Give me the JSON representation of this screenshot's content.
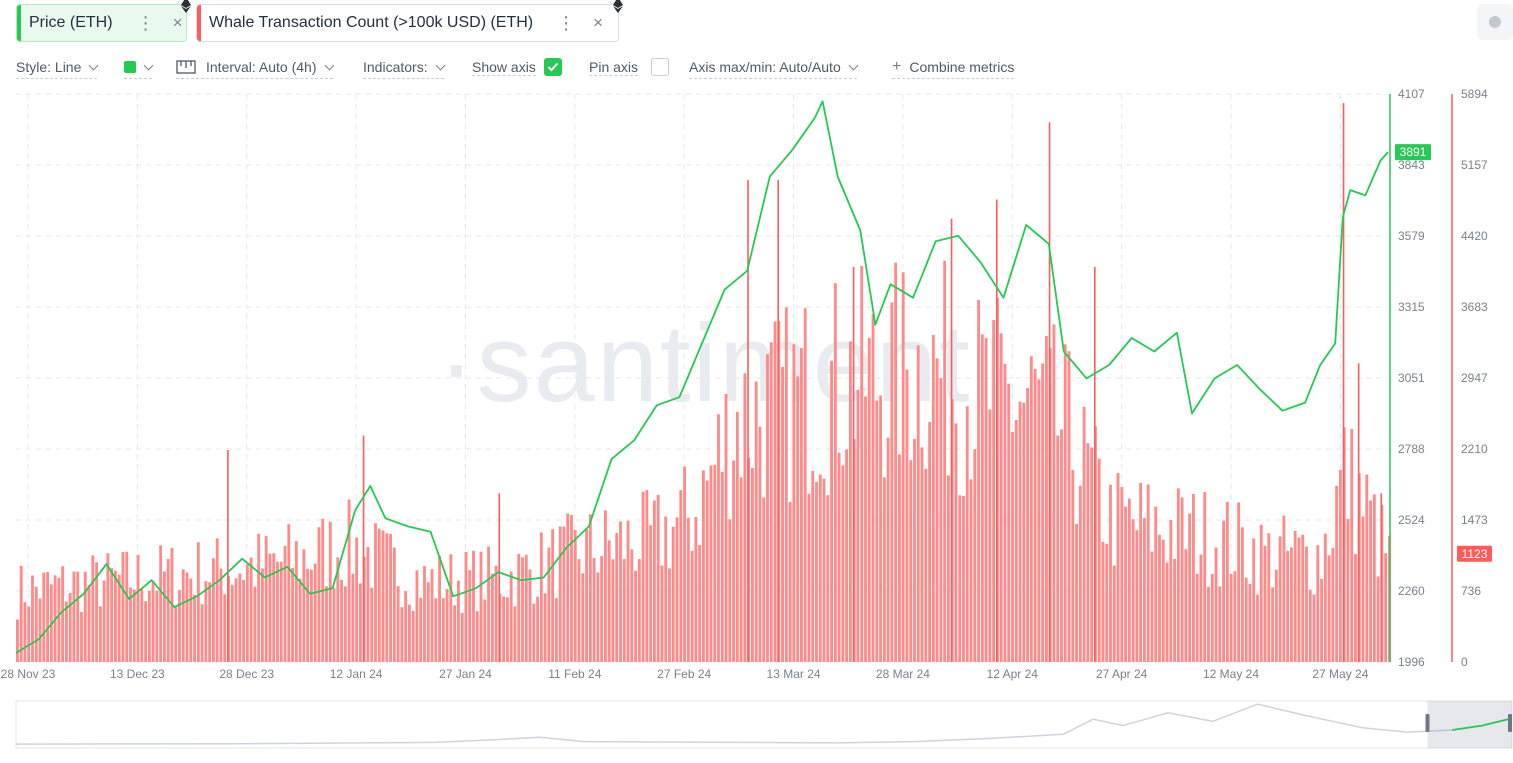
{
  "metrics": [
    {
      "label": "Price (ETH)",
      "color": "#26c953"
    },
    {
      "label": "Whale Transaction Count (>100k USD) (ETH)",
      "color": "#ff5b5b"
    }
  ],
  "menu_glyph": "⋮",
  "close_glyph": "×",
  "settings": {
    "style": "Style: Line",
    "interval": "Interval: Auto (4h)",
    "indicators": "Indicators:",
    "show_axis": "Show axis",
    "show_axis_checked": true,
    "pin_axis": "Pin axis",
    "pin_axis_checked": false,
    "axis_maxmin": "Axis max/min: Auto/Auto",
    "combine": "Combine metrics",
    "combine_icon": "+"
  },
  "watermark": "·santiment",
  "icons": {
    "chip_menu": "dots-vertical-icon",
    "chip_close": "close-icon",
    "network": "ethereum-icon",
    "interval": "interval-ruler-icon",
    "checkbox": "check-icon",
    "round_button": "circle-icon"
  },
  "chart_data": {
    "type": "bar",
    "x_tick_labels": [
      "28 Nov 23",
      "13 Dec 23",
      "28 Dec 23",
      "12 Jan 24",
      "27 Jan 24",
      "11 Feb 24",
      "27 Feb 24",
      "13 Mar 24",
      "28 Mar 24",
      "12 Apr 24",
      "27 Apr 24",
      "12 May 24",
      "27 May 24"
    ],
    "x_range": [
      "2023-11-27",
      "2024-05-27"
    ],
    "price_axis": {
      "ticks": [
        "1996",
        "2260",
        "2524",
        "2788",
        "3051",
        "3315",
        "3579",
        "3843",
        "4107"
      ],
      "ylim": [
        1996,
        4107
      ],
      "color": "#26c953"
    },
    "whale_axis": {
      "ticks": [
        "0",
        "736",
        "1473",
        "2210",
        "2947",
        "3683",
        "4420",
        "5157",
        "5894"
      ],
      "ylim": [
        0,
        5894
      ],
      "color": "#ff5b5b"
    },
    "current_price": "3891",
    "current_whale": "1123",
    "grid": true,
    "series": [
      {
        "name": "Price (ETH)",
        "type": "line",
        "color": "#26c953",
        "points": [
          [
            "2023-11-27",
            2030
          ],
          [
            "2023-11-30",
            2080
          ],
          [
            "2023-12-03",
            2180
          ],
          [
            "2023-12-06",
            2250
          ],
          [
            "2023-12-09",
            2360
          ],
          [
            "2023-12-12",
            2230
          ],
          [
            "2023-12-15",
            2300
          ],
          [
            "2023-12-18",
            2200
          ],
          [
            "2023-12-21",
            2240
          ],
          [
            "2023-12-24",
            2300
          ],
          [
            "2023-12-27",
            2380
          ],
          [
            "2023-12-30",
            2310
          ],
          [
            "2024-01-02",
            2350
          ],
          [
            "2024-01-05",
            2250
          ],
          [
            "2024-01-08",
            2270
          ],
          [
            "2024-01-11",
            2560
          ],
          [
            "2024-01-13",
            2650
          ],
          [
            "2024-01-15",
            2530
          ],
          [
            "2024-01-18",
            2500
          ],
          [
            "2024-01-21",
            2480
          ],
          [
            "2024-01-24",
            2240
          ],
          [
            "2024-01-27",
            2270
          ],
          [
            "2024-01-30",
            2330
          ],
          [
            "2024-02-02",
            2300
          ],
          [
            "2024-02-05",
            2310
          ],
          [
            "2024-02-08",
            2420
          ],
          [
            "2024-02-11",
            2500
          ],
          [
            "2024-02-14",
            2750
          ],
          [
            "2024-02-17",
            2820
          ],
          [
            "2024-02-20",
            2950
          ],
          [
            "2024-02-23",
            2980
          ],
          [
            "2024-02-26",
            3180
          ],
          [
            "2024-02-29",
            3380
          ],
          [
            "2024-03-03",
            3450
          ],
          [
            "2024-03-06",
            3800
          ],
          [
            "2024-03-09",
            3900
          ],
          [
            "2024-03-12",
            4020
          ],
          [
            "2024-03-13",
            4080
          ],
          [
            "2024-03-15",
            3800
          ],
          [
            "2024-03-18",
            3600
          ],
          [
            "2024-03-20",
            3250
          ],
          [
            "2024-03-22",
            3400
          ],
          [
            "2024-03-25",
            3350
          ],
          [
            "2024-03-28",
            3560
          ],
          [
            "2024-03-31",
            3580
          ],
          [
            "2024-04-03",
            3480
          ],
          [
            "2024-04-06",
            3350
          ],
          [
            "2024-04-09",
            3620
          ],
          [
            "2024-04-12",
            3550
          ],
          [
            "2024-04-14",
            3150
          ],
          [
            "2024-04-17",
            3050
          ],
          [
            "2024-04-20",
            3100
          ],
          [
            "2024-04-23",
            3200
          ],
          [
            "2024-04-26",
            3150
          ],
          [
            "2024-04-29",
            3220
          ],
          [
            "2024-05-01",
            2920
          ],
          [
            "2024-05-04",
            3050
          ],
          [
            "2024-05-07",
            3100
          ],
          [
            "2024-05-10",
            3010
          ],
          [
            "2024-05-13",
            2930
          ],
          [
            "2024-05-16",
            2960
          ],
          [
            "2024-05-18",
            3100
          ],
          [
            "2024-05-20",
            3180
          ],
          [
            "2024-05-21",
            3650
          ],
          [
            "2024-05-22",
            3750
          ],
          [
            "2024-05-24",
            3730
          ],
          [
            "2024-05-26",
            3860
          ],
          [
            "2024-05-27",
            3891
          ]
        ]
      },
      {
        "name": "Whale Transaction Count (>100k USD) (ETH)",
        "type": "bar",
        "color": "#ff5b5b",
        "envelope": [
          [
            "2023-11-27",
            800
          ],
          [
            "2023-12-08",
            900
          ],
          [
            "2023-12-20",
            1000
          ],
          [
            "2023-12-31",
            1100
          ],
          [
            "2024-01-10",
            1300
          ],
          [
            "2024-01-20",
            900
          ],
          [
            "2024-01-31",
            950
          ],
          [
            "2024-02-10",
            1250
          ],
          [
            "2024-02-20",
            1400
          ],
          [
            "2024-02-25",
            1700
          ],
          [
            "2024-03-01",
            2700
          ],
          [
            "2024-03-08",
            2900
          ],
          [
            "2024-03-13",
            3100
          ],
          [
            "2024-03-20",
            3200
          ],
          [
            "2024-03-27",
            3300
          ],
          [
            "2024-04-03",
            3000
          ],
          [
            "2024-04-10",
            2900
          ],
          [
            "2024-04-14",
            2600
          ],
          [
            "2024-04-20",
            1600
          ],
          [
            "2024-04-27",
            1500
          ],
          [
            "2024-05-04",
            1400
          ],
          [
            "2024-05-11",
            1200
          ],
          [
            "2024-05-18",
            1200
          ],
          [
            "2024-05-21",
            2100
          ],
          [
            "2024-05-24",
            1700
          ],
          [
            "2024-05-27",
            1123
          ]
        ],
        "spikes": [
          [
            "2023-12-25",
            2200
          ],
          [
            "2024-01-12",
            2350
          ],
          [
            "2024-01-30",
            1750
          ],
          [
            "2024-03-03",
            5000
          ],
          [
            "2024-03-07",
            5000
          ],
          [
            "2024-03-17",
            4100
          ],
          [
            "2024-03-30",
            4600
          ],
          [
            "2024-04-05",
            4800
          ],
          [
            "2024-04-12",
            5600
          ],
          [
            "2024-04-18",
            4100
          ],
          [
            "2024-05-21",
            5800
          ],
          [
            "2024-05-23",
            3100
          ],
          [
            "2024-05-26",
            1750
          ]
        ]
      }
    ],
    "navigator": {
      "range": [
        "2015-08-01",
        "2024-05-27"
      ],
      "selected_range": [
        "2023-11-27",
        "2024-05-27"
      ]
    }
  }
}
